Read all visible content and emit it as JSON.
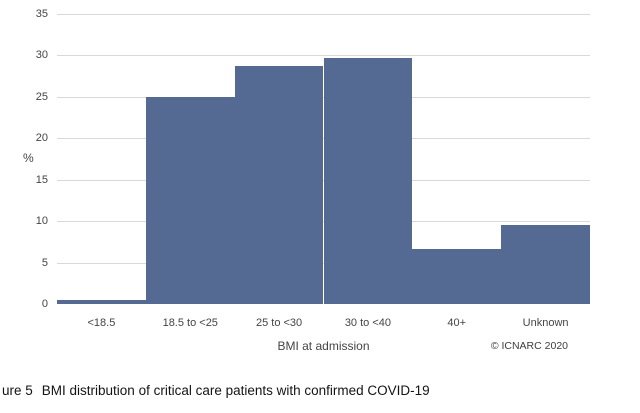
{
  "chart_data": {
    "type": "bar",
    "title": "",
    "categories": [
      "<18.5",
      "18.5 to <25",
      "25 to <30",
      "30 to <40",
      "40+",
      "Unknown"
    ],
    "values": [
      0.5,
      25.0,
      28.7,
      29.7,
      6.7,
      9.5
    ],
    "xlabel": "BMI at admission",
    "ylabel": "%",
    "ylim": [
      0,
      35
    ],
    "yticks": [
      0,
      5,
      10,
      15,
      20,
      25,
      30,
      35
    ],
    "grid": true,
    "legend_position": "none",
    "bar_gap": 0,
    "bar_color": "#546a93",
    "gridline_color": "#d9d9d9",
    "tick_label_color": "#444444"
  },
  "footer": {
    "copyright": "© ICNARC 2020"
  },
  "caption": {
    "prefix": "ure 5",
    "text": "BMI distribution of critical care patients with confirmed COVID-19"
  }
}
